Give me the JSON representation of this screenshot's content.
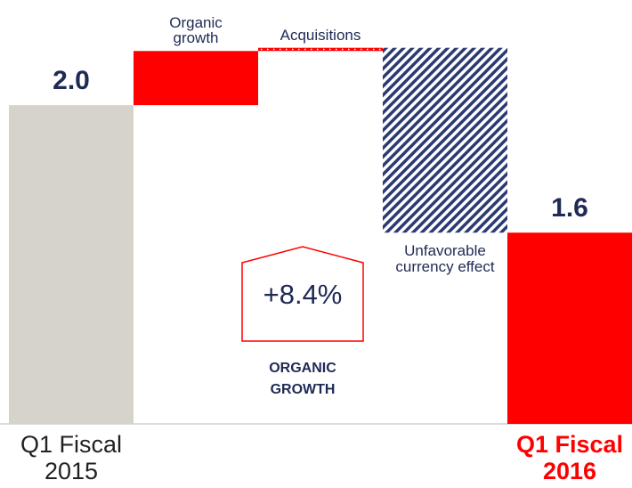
{
  "chart_data": {
    "type": "waterfall",
    "categories": [
      "Q1 Fiscal 2015",
      "Organic growth",
      "Acquisitions",
      "Unfavorable currency effect",
      "Q1 Fiscal 2016"
    ],
    "values": [
      2.0,
      0.17,
      0.01,
      -0.58,
      1.6
    ],
    "value_labels": [
      "2.0",
      null,
      null,
      null,
      "1.6"
    ],
    "colors": [
      "#d6d3cd",
      "#ff0000",
      "#ff0000",
      "#2b3a73",
      "#ff0000"
    ],
    "ylim": [
      1.0,
      2.33
    ],
    "annotation": {
      "value_text": "+8.4%",
      "label": "ORGANIC GROWTH"
    }
  }
}
